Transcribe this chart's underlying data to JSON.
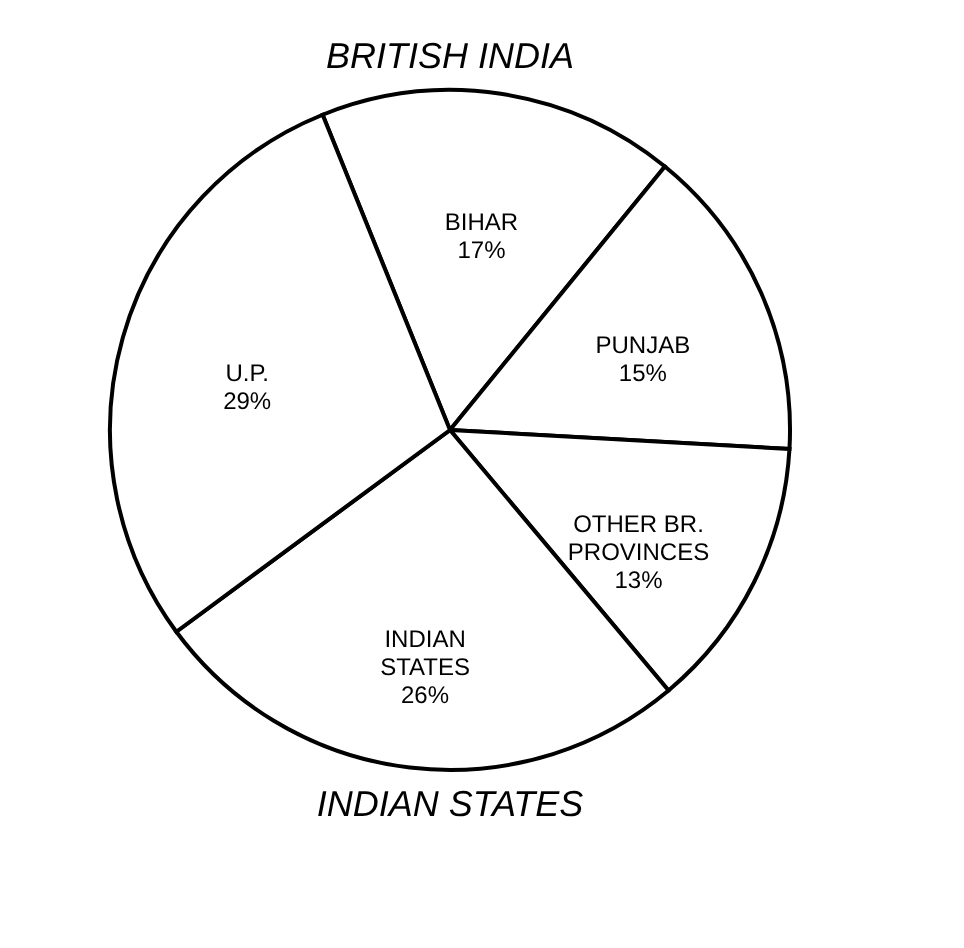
{
  "chart_data": {
    "type": "pie",
    "categories": [
      "BIHAR",
      "PUNJAB",
      "OTHER BR. PROVINCES",
      "INDIAN STATES",
      "U.P."
    ],
    "values": [
      17,
      15,
      13,
      26,
      29
    ],
    "value_labels": [
      "17%",
      "15%",
      "13%",
      "26%",
      "29%"
    ],
    "colors": [
      "#ffffff",
      "#ffffff",
      "#ffffff",
      "#ffffff",
      "#ffffff"
    ],
    "annotations": [
      "BRITISH INDIA",
      "INDIAN STATES"
    ],
    "legend": false
  }
}
